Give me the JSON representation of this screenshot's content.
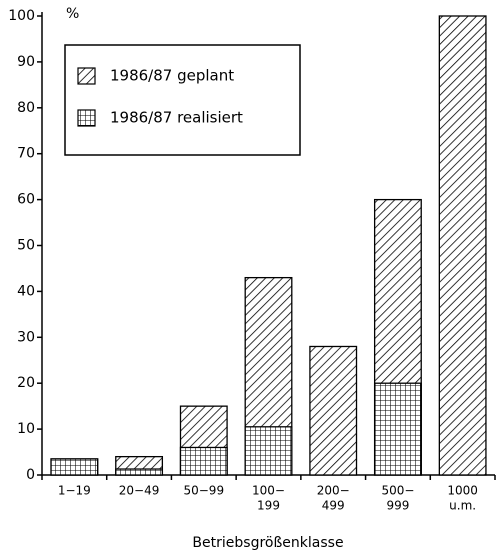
{
  "chart_data": {
    "type": "bar",
    "y_unit": "%",
    "x_label": "Betriebsgrößenklasse",
    "categories": [
      [
        "1−19"
      ],
      [
        "20−49"
      ],
      [
        "50−99"
      ],
      [
        "100−",
        "199"
      ],
      [
        "200−",
        "499"
      ],
      [
        "500−",
        "999"
      ],
      [
        "1000",
        "u.m."
      ]
    ],
    "series": [
      {
        "name": "1986/87 geplant",
        "color": "#000000",
        "pattern": "hatch",
        "values": [
          3.5,
          4,
          15,
          43,
          28,
          60,
          100
        ]
      },
      {
        "name": "1986/87 realisiert",
        "color": "#000000",
        "pattern": "grid",
        "values": [
          3.5,
          1.3,
          6,
          10.5,
          0,
          20,
          0
        ]
      }
    ],
    "ylim": [
      0,
      100
    ],
    "yticks": [
      0,
      10,
      20,
      30,
      40,
      50,
      60,
      70,
      80,
      90,
      100
    ]
  }
}
